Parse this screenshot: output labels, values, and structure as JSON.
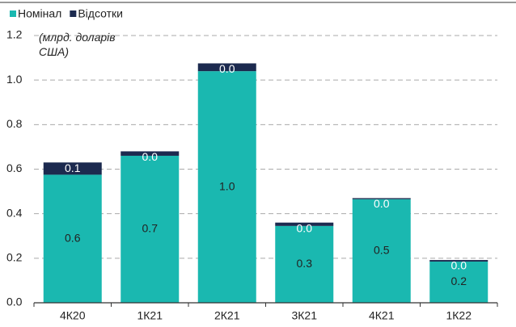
{
  "chart_data": {
    "type": "stacked_bar",
    "annotation": "(млрд. доларів США)",
    "categories": [
      "4К20",
      "1К21",
      "2К21",
      "3К21",
      "4К21",
      "1К22"
    ],
    "series": [
      {
        "name": "Номінал",
        "color": "#1ab8b0",
        "values": [
          0.575,
          0.66,
          1.04,
          0.345,
          0.465,
          0.185
        ],
        "value_labels": [
          "0.6",
          "0.7",
          "1.0",
          "0.3",
          "0.5",
          "0.2"
        ]
      },
      {
        "name": "Відсотки",
        "color": "#1c2a4f",
        "values": [
          0.055,
          0.02,
          0.035,
          0.015,
          0.005,
          0.007
        ],
        "value_labels": [
          "0.1",
          "0.0",
          "0.0",
          "0.0",
          "0.0",
          "0.0"
        ]
      }
    ],
    "ylim": [
      0,
      1.2
    ],
    "yticks": [
      {
        "value": 0,
        "label": "0.0"
      },
      0.2,
      0.4,
      0.6,
      0.8,
      {
        "value": 1,
        "label": "1.0"
      },
      1.2
    ],
    "grid": true,
    "legend": "top-left"
  }
}
